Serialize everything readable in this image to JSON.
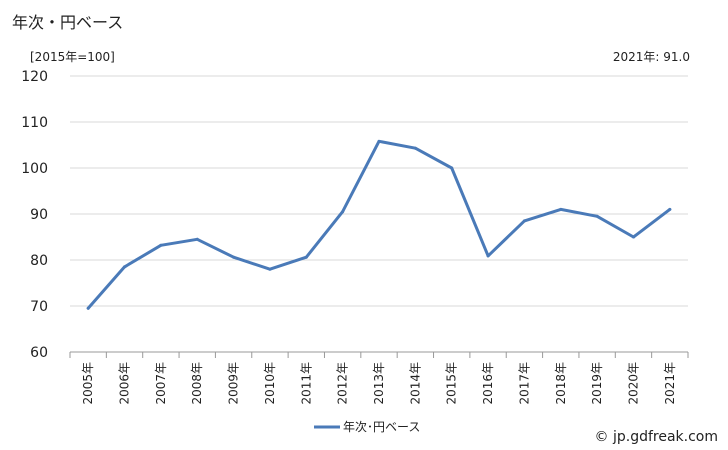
{
  "header": {
    "title": "年次・円ベース",
    "unit_note": "[2015年=100]",
    "latest_value": "2021年: 91.0"
  },
  "footer": {
    "credit": "© jp.gdfreak.com"
  },
  "colors": {
    "series": "#4a7ab8",
    "grid": "#d8d8d8",
    "text": "#222222"
  },
  "chart_data": {
    "type": "line",
    "title": "年次・円ベース",
    "xlabel": "",
    "ylabel": "[2015年=100]",
    "categories": [
      "2005年",
      "2006年",
      "2007年",
      "2008年",
      "2009年",
      "2010年",
      "2011年",
      "2012年",
      "2013年",
      "2014年",
      "2015年",
      "2016年",
      "2017年",
      "2018年",
      "2019年",
      "2020年",
      "2021年"
    ],
    "series": [
      {
        "name": "年次･円ベース",
        "values": [
          69.5,
          78.5,
          83.2,
          84.5,
          80.6,
          78.0,
          80.6,
          90.5,
          105.8,
          104.3,
          100.0,
          80.9,
          88.5,
          91.0,
          89.5,
          85.0,
          91.0
        ]
      }
    ],
    "ylim": [
      60,
      120
    ],
    "yticks": [
      60,
      70,
      80,
      90,
      100,
      110,
      120
    ],
    "grid": true,
    "legend": "bottom-center"
  }
}
